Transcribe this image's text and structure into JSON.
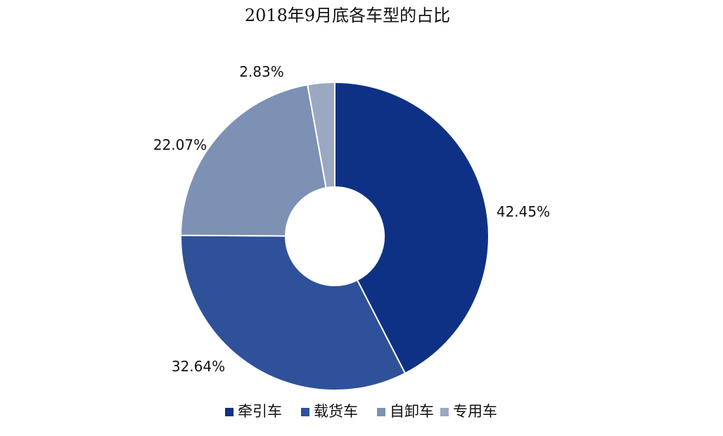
{
  "chart_data": {
    "type": "pie",
    "donut": true,
    "title": "2018年9月底各车型的占比",
    "categories": [
      "牵引车",
      "载货车",
      "自卸车",
      "专用车"
    ],
    "values": [
      42.45,
      32.64,
      22.07,
      2.83
    ],
    "labels": [
      "42.45%",
      "32.64%",
      "22.07%",
      "2.83%"
    ],
    "colors": [
      "#0f3185",
      "#2f5199",
      "#7c91b3",
      "#9aa9c1"
    ],
    "legend_position": "bottom"
  }
}
